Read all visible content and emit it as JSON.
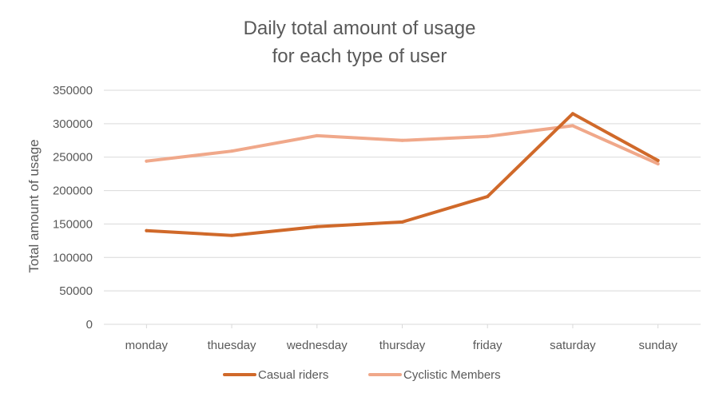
{
  "chart_data": {
    "type": "line",
    "title_lines": [
      "Daily total amount of usage",
      "for each type of user"
    ],
    "xlabel": "",
    "ylabel": "Total amount of usage",
    "categories": [
      "monday",
      "thuesday",
      "wednesday",
      "thursday",
      "friday",
      "saturday",
      "sunday"
    ],
    "ylim": [
      0,
      350000
    ],
    "yticks": [
      0,
      50000,
      100000,
      150000,
      200000,
      250000,
      300000,
      350000
    ],
    "grid": true,
    "legend_position": "bottom",
    "series": [
      {
        "name": "Casual riders",
        "color": "#d0692a",
        "values": [
          140000,
          133000,
          146000,
          153000,
          191000,
          315000,
          245000
        ]
      },
      {
        "name": "Cyclistic Members",
        "color": "#f0a88a",
        "values": [
          244000,
          259000,
          282000,
          275000,
          281000,
          297000,
          240000
        ]
      }
    ]
  }
}
